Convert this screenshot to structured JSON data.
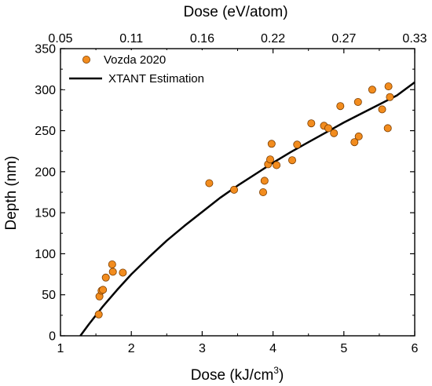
{
  "chart_data": {
    "type": "scatter",
    "xlabel_bottom": "Dose (kJ/cm",
    "xlabel_bottom_sup": "3",
    "xlabel_bottom_end": ")",
    "xlabel_top": "Dose (eV/atom)",
    "ylabel": "Depth (nm)",
    "xlim": [
      1,
      6
    ],
    "ylim": [
      0,
      350
    ],
    "x_ticks": [
      1,
      2,
      3,
      4,
      5,
      6
    ],
    "y_ticks": [
      0,
      50,
      100,
      150,
      200,
      250,
      300,
      350
    ],
    "top_ticks": [
      "0.05",
      "0.11",
      "0.16",
      "0.22",
      "0.27",
      "0.33"
    ],
    "legend_position": "top-left",
    "series": [
      {
        "name": "Vozda 2020",
        "kind": "scatter",
        "color": "#f28c1e",
        "x": [
          1.54,
          1.55,
          1.58,
          1.6,
          1.64,
          1.73,
          1.74,
          1.88,
          3.1,
          3.45,
          3.86,
          3.88,
          3.93,
          3.96,
          3.98,
          4.05,
          4.27,
          4.34,
          4.54,
          4.72,
          4.78,
          4.86,
          4.95,
          5.15,
          5.2,
          5.21,
          5.4,
          5.54,
          5.62,
          5.63,
          5.65
        ],
        "y": [
          26,
          48,
          55,
          56,
          71,
          87,
          78,
          77,
          186,
          178,
          175,
          189,
          209,
          215,
          234,
          208,
          214,
          233,
          259,
          256,
          253,
          247,
          280,
          236,
          285,
          243,
          300,
          276,
          253,
          304,
          291
        ]
      },
      {
        "name": "XTANT Estimation",
        "kind": "line",
        "color": "#000000",
        "x": [
          1.28,
          1.4,
          1.6,
          1.8,
          2.0,
          2.25,
          2.5,
          2.75,
          3.0,
          3.25,
          3.5,
          3.75,
          4.0,
          4.25,
          4.5,
          4.75,
          5.0,
          5.25,
          5.5,
          5.75,
          6.0
        ],
        "y": [
          0,
          14,
          36,
          56,
          75,
          96,
          116,
          134,
          151,
          168,
          183,
          197,
          211,
          224,
          236,
          248,
          260,
          271,
          282,
          293,
          309
        ]
      }
    ]
  }
}
